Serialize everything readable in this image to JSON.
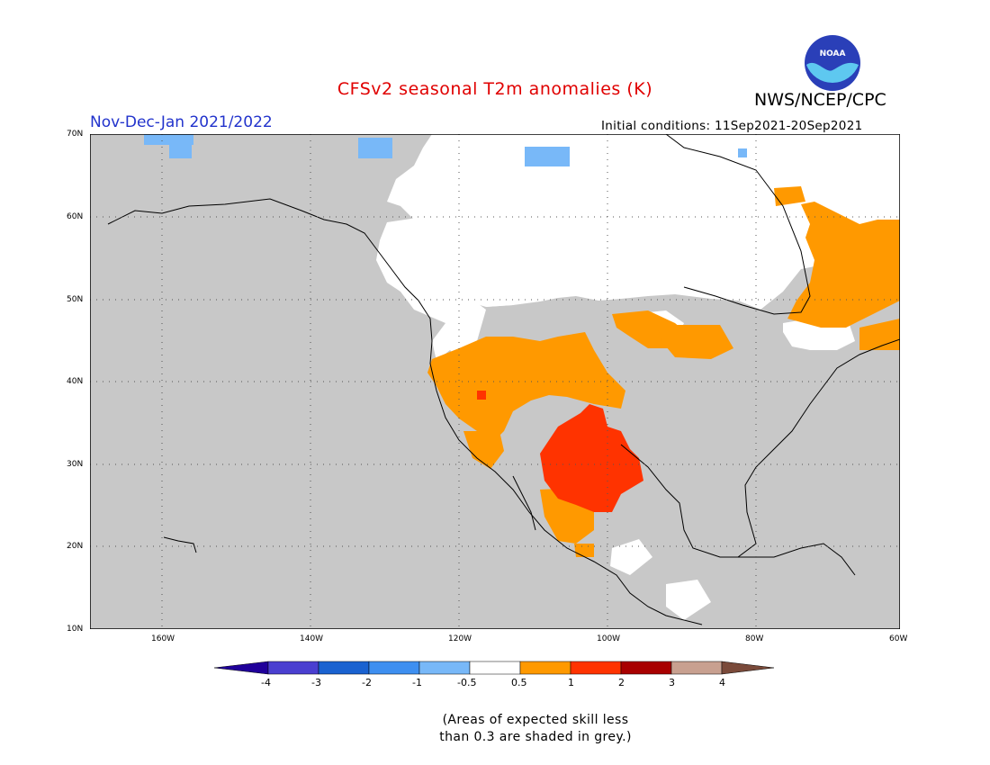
{
  "title": "CFSv2 seasonal T2m anomalies (K)",
  "organization": "NWS/NCEP/CPC",
  "logo_text": "NOAA",
  "forecast_period": "Nov-Dec-Jan 2021/2022",
  "initial_conditions": "Initial conditions: 11Sep2021-20Sep2021",
  "latitude_labels": [
    "70N",
    "60N",
    "50N",
    "40N",
    "30N",
    "20N",
    "10N"
  ],
  "longitude_labels": [
    "160W",
    "140W",
    "120W",
    "100W",
    "80W",
    "60W"
  ],
  "colorbar": {
    "levels": [
      "-4",
      "-3",
      "-2",
      "-1",
      "-0.5",
      "0.5",
      "1",
      "2",
      "3",
      "4"
    ],
    "colors": [
      "#20009a",
      "#4a3fd0",
      "#1a62d0",
      "#3e8ff0",
      "#78b8f8",
      "#ffffff",
      "#ff9900",
      "#ff3300",
      "#a80000",
      "#c8a090",
      "#7a4a3a"
    ]
  },
  "skill_note": [
    "(Areas of expected skill less",
    "than 0.3 are shaded in grey.)"
  ],
  "colors": {
    "low_skill_grey": "#c8c8c8",
    "title_red": "#e00000",
    "period_blue": "#2233cc"
  }
}
